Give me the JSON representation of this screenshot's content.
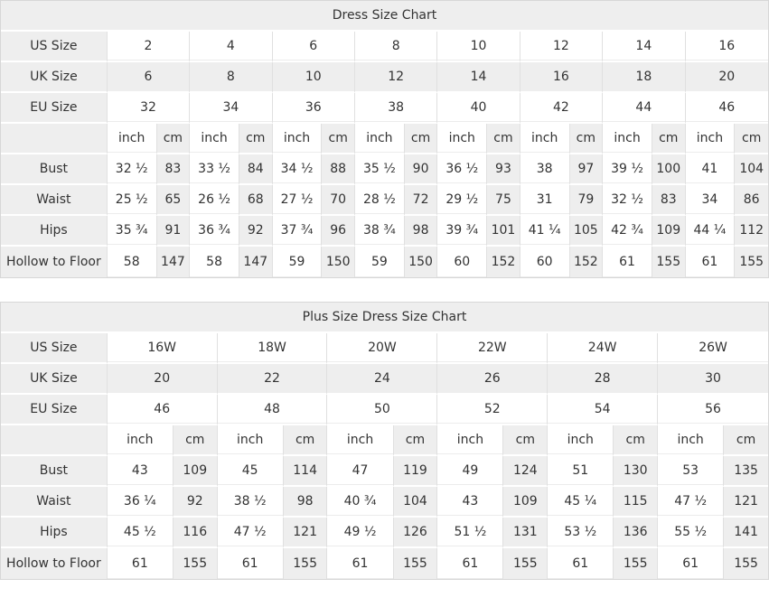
{
  "page": {
    "background": "#ffffff"
  },
  "colors": {
    "title_bar_bg": "#eeeeee",
    "shaded_cell_bg": "#eeeeee",
    "plain_cell_bg": "#ffffff",
    "grid_line": "#e0e0e0",
    "outer_border": "#d7d7d7",
    "row_separator": "#ffffff",
    "text": "#333333",
    "title_text": "#000000"
  },
  "chart_data": [
    {
      "type": "table",
      "title": "Dress Size Chart",
      "size_rows": [
        {
          "label": "US Size",
          "values": [
            "2",
            "4",
            "6",
            "8",
            "10",
            "12",
            "14",
            "16"
          ]
        },
        {
          "label": "UK Size",
          "values": [
            "6",
            "8",
            "10",
            "12",
            "14",
            "16",
            "18",
            "20"
          ]
        },
        {
          "label": "EU Size",
          "values": [
            "32",
            "34",
            "36",
            "38",
            "40",
            "42",
            "44",
            "46"
          ]
        }
      ],
      "unit_labels": {
        "inch": "inch",
        "cm": "cm"
      },
      "measure_rows": [
        {
          "label": "Bust",
          "inch": [
            "32 ½",
            "33 ½",
            "34 ½",
            "35 ½",
            "36 ½",
            "38",
            "39 ½",
            "41"
          ],
          "cm": [
            "83",
            "84",
            "88",
            "90",
            "93",
            "97",
            "100",
            "104"
          ]
        },
        {
          "label": "Waist",
          "inch": [
            "25 ½",
            "26 ½",
            "27 ½",
            "28 ½",
            "29 ½",
            "31",
            "32 ½",
            "34"
          ],
          "cm": [
            "65",
            "68",
            "70",
            "72",
            "75",
            "79",
            "83",
            "86"
          ]
        },
        {
          "label": "Hips",
          "inch": [
            "35 ¾",
            "36 ¾",
            "37 ¾",
            "38 ¾",
            "39 ¾",
            "41 ¼",
            "42 ¾",
            "44 ¼"
          ],
          "cm": [
            "91",
            "92",
            "96",
            "98",
            "101",
            "105",
            "109",
            "112"
          ]
        },
        {
          "label": "Hollow to Floor",
          "inch": [
            "58",
            "58",
            "59",
            "59",
            "60",
            "60",
            "61",
            "61"
          ],
          "cm": [
            "147",
            "147",
            "150",
            "150",
            "152",
            "152",
            "155",
            "155"
          ]
        }
      ]
    },
    {
      "type": "table",
      "title": "Plus Size Dress Size Chart",
      "size_rows": [
        {
          "label": "US Size",
          "values": [
            "16W",
            "18W",
            "20W",
            "22W",
            "24W",
            "26W"
          ]
        },
        {
          "label": "UK Size",
          "values": [
            "20",
            "22",
            "24",
            "26",
            "28",
            "30"
          ]
        },
        {
          "label": "EU Size",
          "values": [
            "46",
            "48",
            "50",
            "52",
            "54",
            "56"
          ]
        }
      ],
      "unit_labels": {
        "inch": "inch",
        "cm": "cm"
      },
      "measure_rows": [
        {
          "label": "Bust",
          "inch": [
            "43",
            "45",
            "47",
            "49",
            "51",
            "53"
          ],
          "cm": [
            "109",
            "114",
            "119",
            "124",
            "130",
            "135"
          ]
        },
        {
          "label": "Waist",
          "inch": [
            "36 ¼",
            "38 ½",
            "40 ¾",
            "43",
            "45 ¼",
            "47 ½"
          ],
          "cm": [
            "92",
            "98",
            "104",
            "109",
            "115",
            "121"
          ]
        },
        {
          "label": "Hips",
          "inch": [
            "45 ½",
            "47 ½",
            "49 ½",
            "51 ½",
            "53 ½",
            "55 ½"
          ],
          "cm": [
            "116",
            "121",
            "126",
            "131",
            "136",
            "141"
          ]
        },
        {
          "label": "Hollow to Floor",
          "inch": [
            "61",
            "61",
            "61",
            "61",
            "61",
            "61"
          ],
          "cm": [
            "155",
            "155",
            "155",
            "155",
            "155",
            "155"
          ]
        }
      ]
    }
  ]
}
